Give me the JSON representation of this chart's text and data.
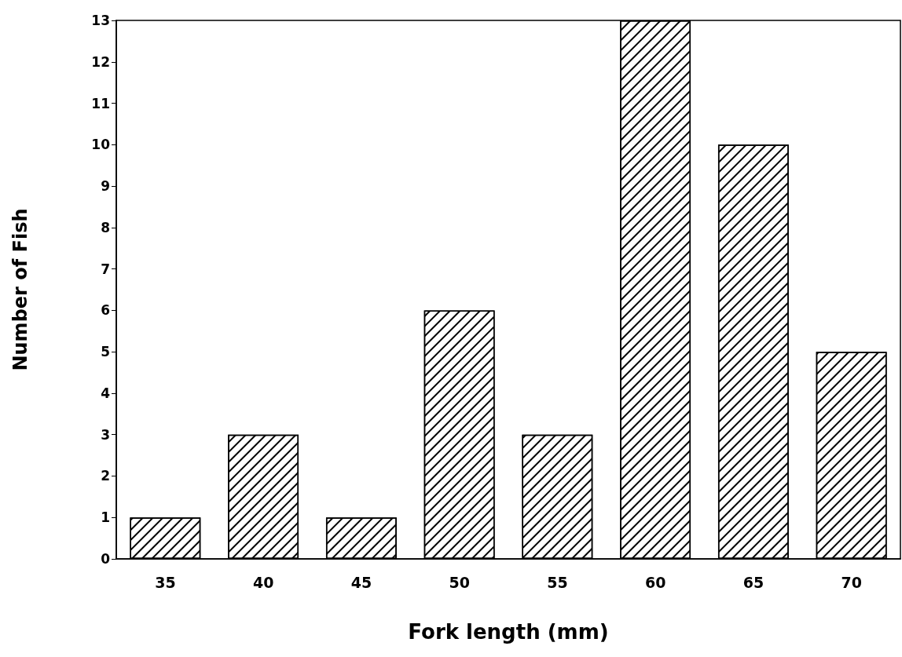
{
  "chart_data": {
    "type": "bar",
    "xlabel": "Fork length (mm)",
    "ylabel": "Number of Fish",
    "categories": [
      "35",
      "40",
      "45",
      "50",
      "55",
      "60",
      "65",
      "70"
    ],
    "values": [
      1,
      3,
      1,
      6,
      3,
      13,
      10,
      5
    ],
    "color": "#000000",
    "ylim": [
      0,
      13
    ],
    "yticks": [
      0,
      1,
      2,
      3,
      4,
      5,
      6,
      7,
      8,
      9,
      10,
      11,
      12,
      13
    ],
    "grid": false
  }
}
